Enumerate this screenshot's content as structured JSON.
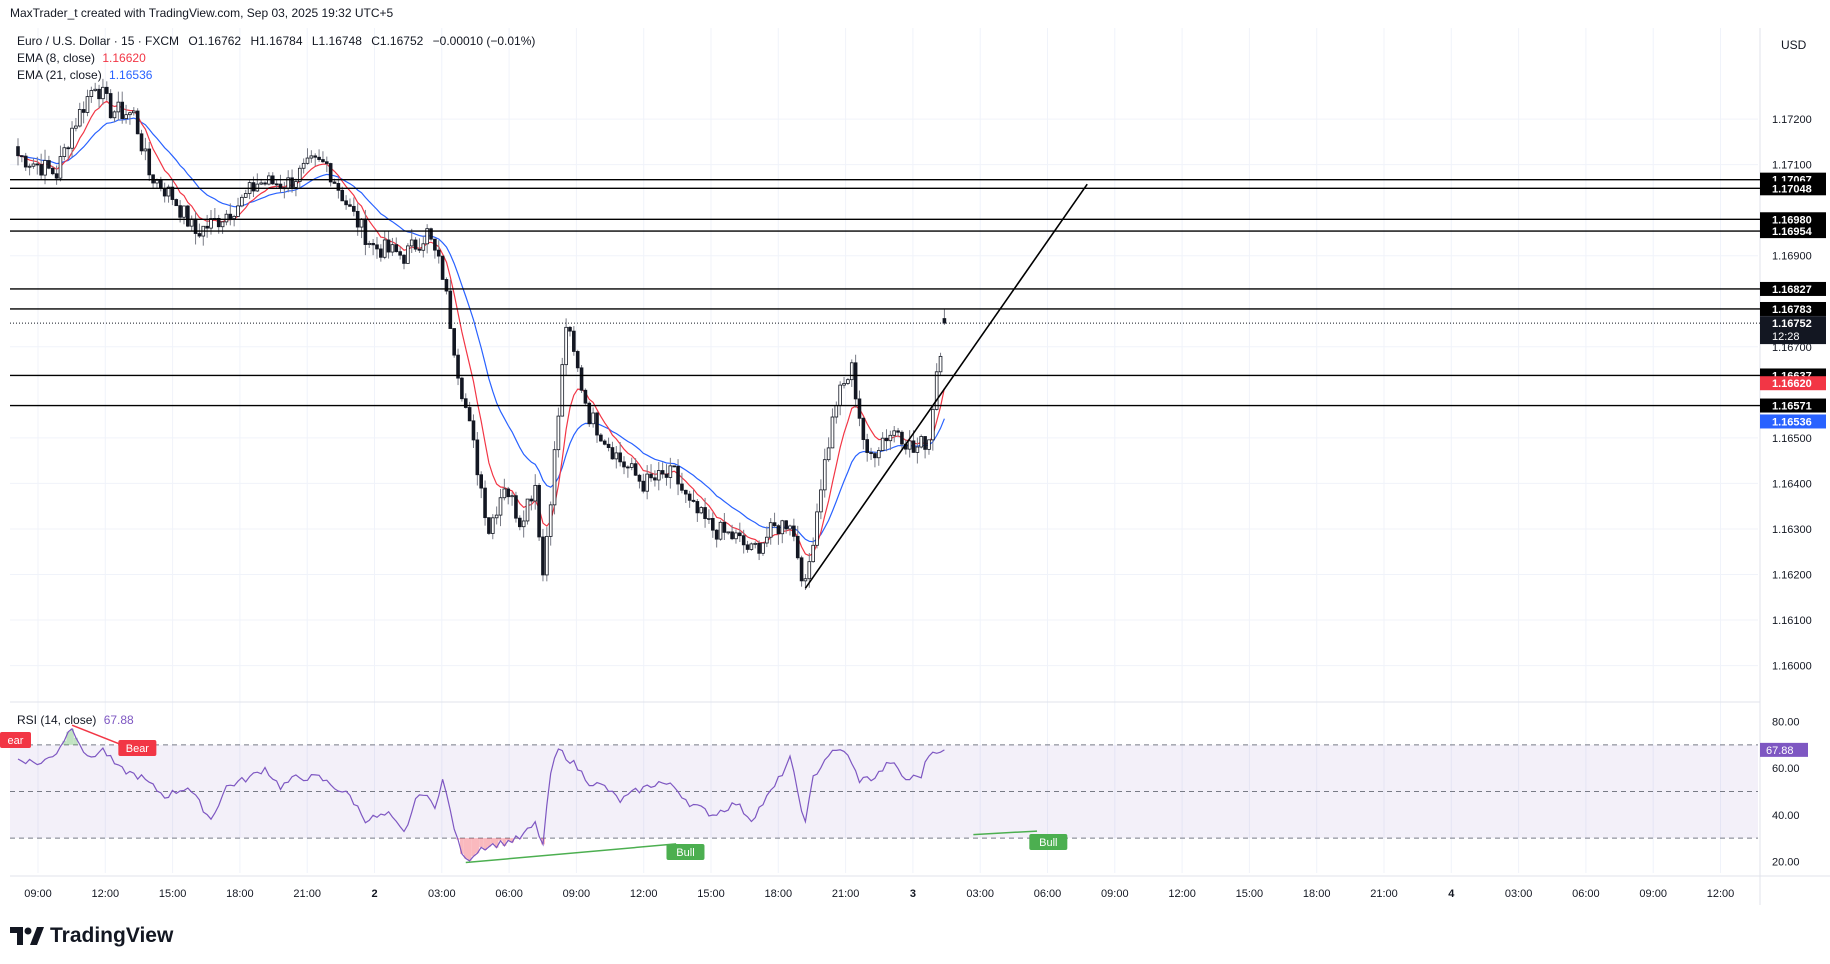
{
  "header": {
    "created_by": "MaxTrader_t created with TradingView.com, Sep 03, 2025 19:32 UTC+5"
  },
  "legend": {
    "symbol": "Euro / U.S. Dollar · 15 · FXCM",
    "open": "O1.16762",
    "high": "H1.16784",
    "low": "L1.16748",
    "close": "C1.16752",
    "change": "−0.00010 (−0.01%)",
    "ema8_label": "EMA (8, close)",
    "ema8_value": "1.16620",
    "ema21_label": "EMA (21, close)",
    "ema21_value": "1.16536",
    "rsi_label": "RSI (14, close)",
    "rsi_value": "67.88"
  },
  "currency": "USD",
  "brand": {
    "name": "TradingView"
  },
  "colors": {
    "ema8": "#f23645",
    "ema21": "#2962ff",
    "rsi": "#7e57c2",
    "bear": "#f23645",
    "bull": "#4caf50",
    "candle": "#131722"
  },
  "chart_data": {
    "type": "candlestick",
    "symbol": "EUR/USD",
    "timeframe": "15",
    "price_axis": {
      "ticks": [
        "1.17200",
        "1.17100",
        "1.16900",
        "1.16700",
        "1.16500",
        "1.16400",
        "1.16300",
        "1.16200",
        "1.16100",
        "1.16000"
      ],
      "range": [
        1.1592,
        1.174
      ]
    },
    "time_axis": {
      "ticks": [
        "09:00",
        "12:00",
        "15:00",
        "18:00",
        "21:00",
        "2",
        "03:00",
        "06:00",
        "09:00",
        "12:00",
        "15:00",
        "18:00",
        "21:00",
        "3",
        "03:00",
        "06:00",
        "09:00",
        "12:00",
        "15:00",
        "18:00",
        "21:00",
        "4",
        "03:00",
        "06:00",
        "09:00",
        "12:00"
      ]
    },
    "horizontal_levels": [
      1.17067,
      1.17048,
      1.1698,
      1.16954,
      1.16827,
      1.16783,
      1.16637,
      1.16571
    ],
    "level_labels": [
      "1.17067",
      "1.17048",
      "1.16980",
      "1.16954",
      "1.16827",
      "1.16783",
      "1.16637",
      "1.16571"
    ],
    "last_price": {
      "value": "1.16752",
      "countdown": "12:28"
    },
    "ema8_label_value": "1.16620",
    "ema21_label_value": "1.16536",
    "trendline": {
      "from": {
        "bar": 204,
        "price": 1.1617
      },
      "to": {
        "bar": 277,
        "price": 1.17057
      }
    },
    "anchors": [
      [
        0,
        1.1712
      ],
      [
        10,
        1.1708
      ],
      [
        14,
        1.1718
      ],
      [
        20,
        1.1728
      ],
      [
        24,
        1.1722
      ],
      [
        30,
        1.1721
      ],
      [
        34,
        1.1708
      ],
      [
        40,
        1.1703
      ],
      [
        46,
        1.1695
      ],
      [
        52,
        1.1698
      ],
      [
        58,
        1.1702
      ],
      [
        62,
        1.1706
      ],
      [
        70,
        1.1706
      ],
      [
        76,
        1.171
      ],
      [
        80,
        1.171
      ],
      [
        86,
        1.17
      ],
      [
        92,
        1.1692
      ],
      [
        100,
        1.169
      ],
      [
        106,
        1.1695
      ],
      [
        110,
        1.1686
      ],
      [
        114,
        1.1665
      ],
      [
        118,
        1.1648
      ],
      [
        122,
        1.163
      ],
      [
        126,
        1.164
      ],
      [
        130,
        1.1632
      ],
      [
        134,
        1.164
      ],
      [
        136,
        1.162
      ],
      [
        140,
        1.1655
      ],
      [
        142,
        1.1675
      ],
      [
        144,
        1.1668
      ],
      [
        148,
        1.1655
      ],
      [
        152,
        1.165
      ],
      [
        156,
        1.1645
      ],
      [
        162,
        1.164
      ],
      [
        170,
        1.1642
      ],
      [
        174,
        1.1635
      ],
      [
        180,
        1.163
      ],
      [
        186,
        1.1628
      ],
      [
        190,
        1.1625
      ],
      [
        196,
        1.163
      ],
      [
        200,
        1.1632
      ],
      [
        204,
        1.1617
      ],
      [
        208,
        1.164
      ],
      [
        212,
        1.1658
      ],
      [
        216,
        1.1665
      ],
      [
        220,
        1.1645
      ],
      [
        224,
        1.165
      ],
      [
        228,
        1.1652
      ],
      [
        232,
        1.1647
      ],
      [
        236,
        1.165
      ],
      [
        238,
        1.1665
      ],
      [
        240,
        1.1675
      ]
    ],
    "rsi": {
      "range": [
        15,
        85
      ],
      "ticks": [
        80,
        60,
        40,
        20
      ],
      "levels": [
        70,
        50,
        30
      ],
      "last": "67.88",
      "anchors": [
        [
          0,
          64
        ],
        [
          6,
          62
        ],
        [
          10,
          67
        ],
        [
          14,
          78
        ],
        [
          18,
          64
        ],
        [
          22,
          68
        ],
        [
          26,
          60
        ],
        [
          32,
          56
        ],
        [
          38,
          48
        ],
        [
          44,
          52
        ],
        [
          50,
          38
        ],
        [
          54,
          52
        ],
        [
          60,
          56
        ],
        [
          64,
          60
        ],
        [
          68,
          52
        ],
        [
          72,
          56
        ],
        [
          78,
          56
        ],
        [
          82,
          52
        ],
        [
          86,
          48
        ],
        [
          90,
          38
        ],
        [
          96,
          40
        ],
        [
          100,
          32
        ],
        [
          104,
          50
        ],
        [
          108,
          44
        ],
        [
          110,
          55
        ],
        [
          114,
          28
        ],
        [
          116,
          20
        ],
        [
          120,
          26
        ],
        [
          126,
          28
        ],
        [
          130,
          30
        ],
        [
          134,
          36
        ],
        [
          136,
          27
        ],
        [
          138,
          58
        ],
        [
          140,
          68
        ],
        [
          144,
          62
        ],
        [
          148,
          54
        ],
        [
          152,
          52
        ],
        [
          156,
          46
        ],
        [
          160,
          50
        ],
        [
          166,
          54
        ],
        [
          170,
          52
        ],
        [
          174,
          45
        ],
        [
          180,
          40
        ],
        [
          186,
          45
        ],
        [
          190,
          38
        ],
        [
          196,
          52
        ],
        [
          200,
          64
        ],
        [
          204,
          36
        ],
        [
          206,
          56
        ],
        [
          210,
          66
        ],
        [
          214,
          68
        ],
        [
          218,
          55
        ],
        [
          222,
          56
        ],
        [
          226,
          63
        ],
        [
          230,
          55
        ],
        [
          234,
          57
        ],
        [
          236,
          66
        ],
        [
          238,
          67.88
        ]
      ],
      "divergences": [
        {
          "label": "ear",
          "type": "bear"
        },
        {
          "label": "Bear",
          "type": "bear"
        },
        {
          "label": "Bull",
          "type": "bull"
        },
        {
          "label": "Bull",
          "type": "bull"
        }
      ]
    }
  }
}
